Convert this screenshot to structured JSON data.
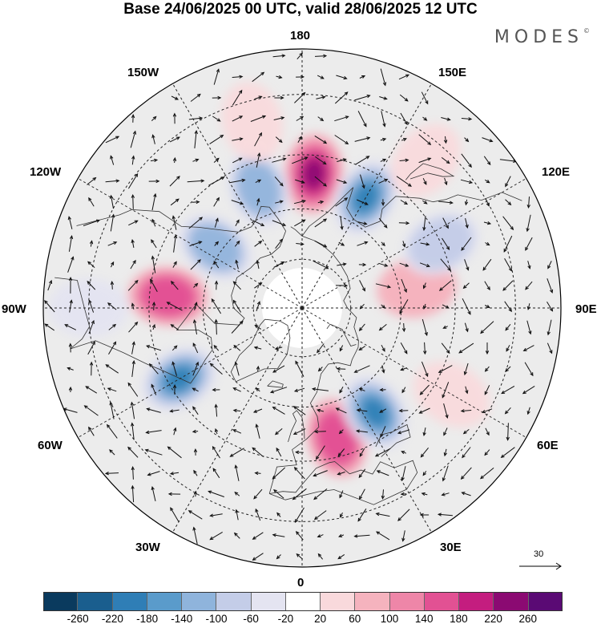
{
  "title": "Base 24/06/2025 00 UTC, valid 28/06/2025 12 UTC",
  "brand": {
    "name": "MODES",
    "mark": "©"
  },
  "lon_labels": {
    "l180": "180",
    "l150w": "150W",
    "l150e": "150E",
    "l120w": "120W",
    "l120e": "120E",
    "l90w": "90W",
    "l90e": "90E",
    "l60w": "60W",
    "l60e": "60E",
    "l30w": "30W",
    "l30e": "30E",
    "l0": "0"
  },
  "reference_vector": {
    "label": "30"
  },
  "colorbar": {
    "colors": [
      "#0a3a5e",
      "#1a5e8e",
      "#2f7eb6",
      "#5a9bcb",
      "#8fb4dc",
      "#c4cde8",
      "#e4e4f1",
      "#ffffff",
      "#f9d9dc",
      "#f5b3be",
      "#ee86a8",
      "#e25193",
      "#c41d7f",
      "#8b0a72",
      "#5a0a74"
    ],
    "tick_labels": [
      "-260",
      "-220",
      "-180",
      "-140",
      "-100",
      "-60",
      "-20",
      "20",
      "60",
      "100",
      "140",
      "180",
      "220",
      "260"
    ]
  },
  "anomaly_centers": [
    {
      "lon": 175,
      "lat": 50,
      "value": 230
    },
    {
      "lon": 150,
      "lat": 52,
      "value": -190
    },
    {
      "lon": -160,
      "lat": 52,
      "value": -130
    },
    {
      "lon": -60,
      "lat": 48,
      "value": -240
    },
    {
      "lon": 15,
      "lat": 50,
      "value": 170
    },
    {
      "lon": 35,
      "lat": 52,
      "value": -190
    },
    {
      "lon": -95,
      "lat": 50,
      "value": 150
    },
    {
      "lon": -125,
      "lat": 58,
      "value": -110
    },
    {
      "lon": 100,
      "lat": 55,
      "value": 80
    },
    {
      "lon": 115,
      "lat": 45,
      "value": -100
    },
    {
      "lon": 140,
      "lat": 35,
      "value": 50
    },
    {
      "lon": -165,
      "lat": 35,
      "value": 30
    },
    {
      "lon": -90,
      "lat": 30,
      "value": -60
    },
    {
      "lon": 60,
      "lat": 40,
      "value": 40
    }
  ]
}
